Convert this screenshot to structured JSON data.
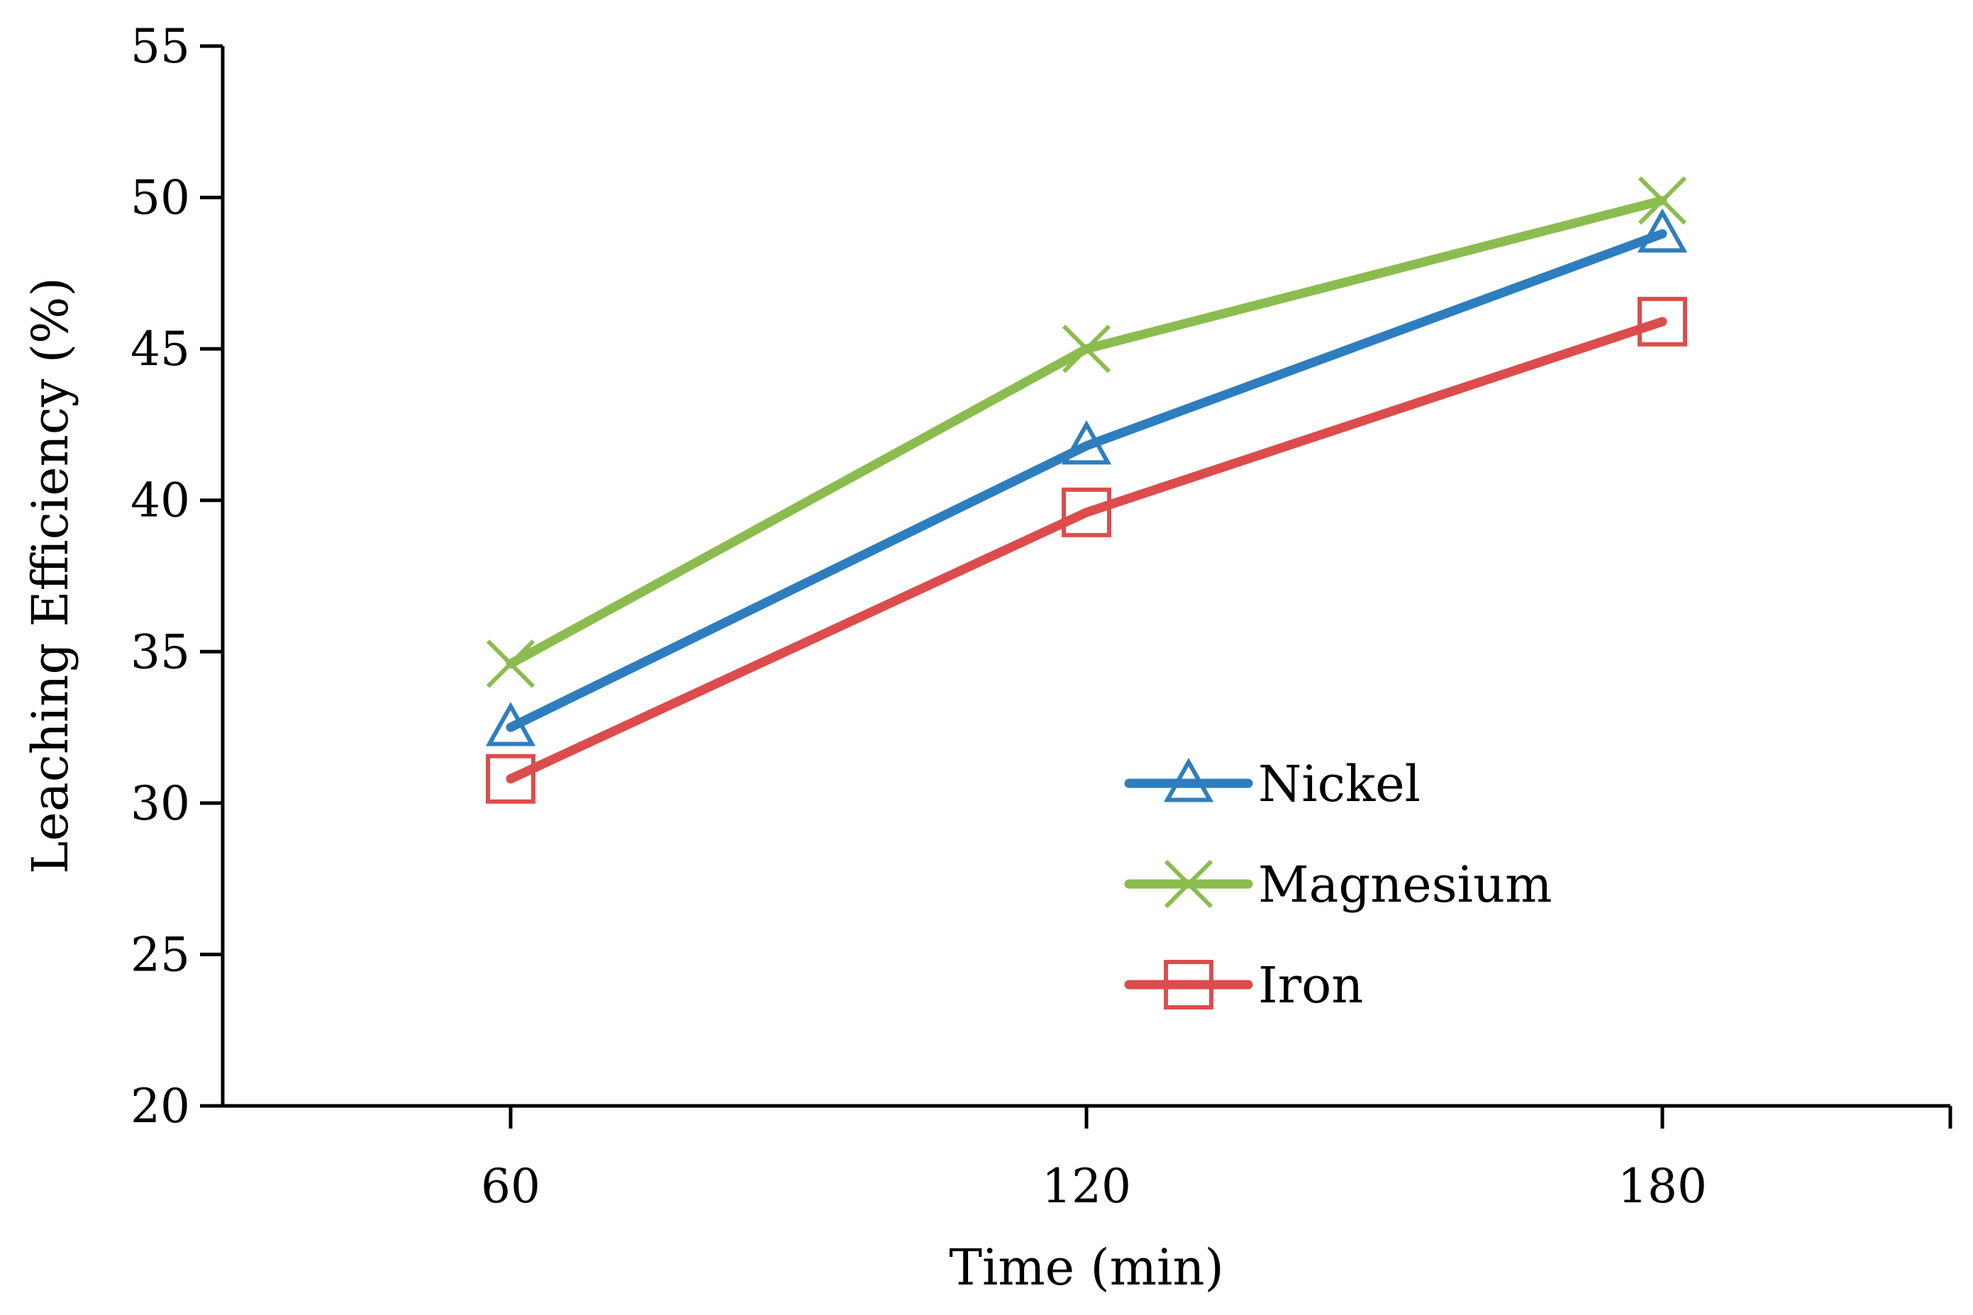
{
  "chart_data": {
    "type": "line",
    "title": "",
    "xlabel": "Time (min)",
    "ylabel": "Leaching Efficiency (%)",
    "x": [
      60,
      120,
      180
    ],
    "x_tick_labels": [
      "60",
      "120",
      "180"
    ],
    "xlim": [
      30,
      210
    ],
    "ylim": [
      20,
      55
    ],
    "y_ticks": [
      20,
      25,
      30,
      35,
      40,
      45,
      50,
      55
    ],
    "y_tick_labels": [
      "20",
      "25",
      "30",
      "35",
      "40",
      "45",
      "50",
      "55"
    ],
    "grid": false,
    "legend_position": "inside-bottom-center",
    "series": [
      {
        "name": "Nickel",
        "color": "#2e7ebf",
        "marker": "triangle",
        "values": [
          32.5,
          41.8,
          48.8
        ]
      },
      {
        "name": "Magnesium",
        "color": "#8cbc4f",
        "marker": "x",
        "values": [
          34.6,
          45.0,
          49.9
        ]
      },
      {
        "name": "Iron",
        "color": "#dd4c4c",
        "marker": "square",
        "values": [
          30.8,
          39.6,
          45.9
        ]
      }
    ]
  }
}
